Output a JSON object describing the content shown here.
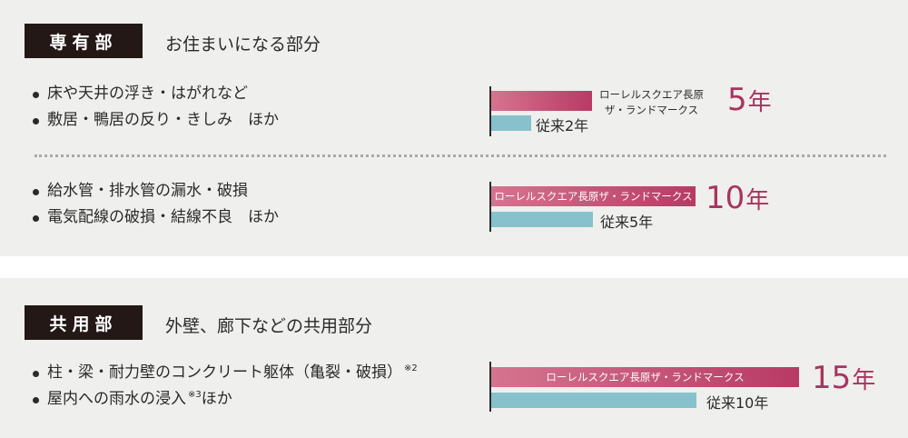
{
  "section1": {
    "tag": "専有部",
    "heading": "お住まいになる部分",
    "group1": {
      "items": [
        "床や天井の浮き・はがれなど",
        "敷居・鴨居の反り・きしみ　ほか"
      ],
      "brand_line1": "ローレルスクエア長原",
      "brand_line2": "ザ・ランドマークス",
      "conventional_label": "従来2年",
      "years_num": "5",
      "years_unit": "年",
      "value_years": 5,
      "conventional_years": 2
    },
    "group2": {
      "items": [
        "給水管・排水管の漏水・破損",
        "電気配線の破損・結線不良　ほか"
      ],
      "brand_label": "ローレルスクエア長原ザ・ランドマークス",
      "conventional_label": "従来5年",
      "years_num": "10",
      "years_unit": "年",
      "value_years": 10,
      "conventional_years": 5
    }
  },
  "section2": {
    "tag": "共用部",
    "heading": "外壁、廊下などの共用部分",
    "items": [
      {
        "text": "柱・梁・耐力壁のコンクリート躯体（亀裂・破損）",
        "note": "※2"
      },
      {
        "text": "屋内への雨水の浸入",
        "note": "※3",
        "suffix": "ほか"
      }
    ],
    "brand_label": "ローレルスクエア長原ザ・ランドマークス",
    "conventional_label": "従来10年",
    "years_num": "15",
    "years_unit": "年",
    "value_years": 15,
    "conventional_years": 10
  },
  "colors": {
    "tag_bg": "#231815",
    "brand_bar": "#b83a65",
    "conventional_bar": "#87c1cb",
    "years_text": "#a8345f",
    "panel_bg": "#efefed"
  }
}
